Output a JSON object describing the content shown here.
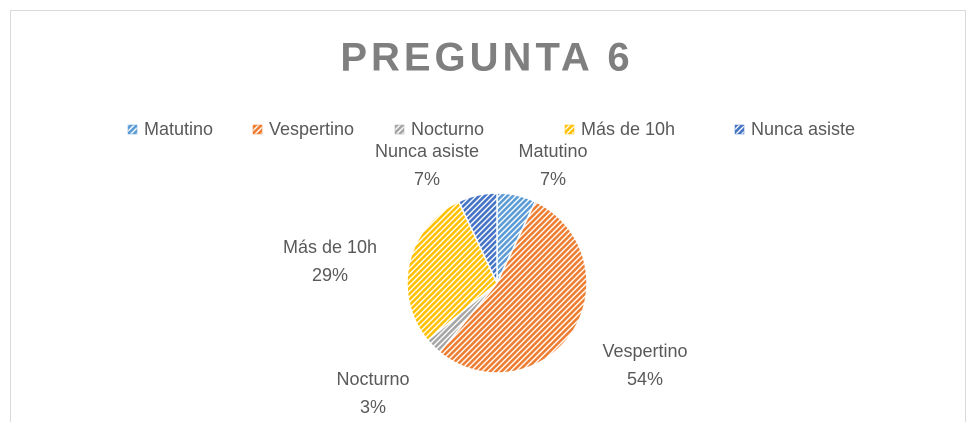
{
  "chart_data": {
    "type": "pie",
    "title": "PREGUNTA 6",
    "categories": [
      "Matutino",
      "Vespertino",
      "Nocturno",
      "Más de 10h",
      "Nunca asiste"
    ],
    "values": [
      7,
      54,
      3,
      29,
      7
    ],
    "value_labels": [
      "7%",
      "54%",
      "3%",
      "29%",
      "7%"
    ],
    "colors": [
      "#5b9bd5",
      "#ed7d31",
      "#a5a5a5",
      "#ffc000",
      "#4472c4"
    ],
    "legend": "top"
  }
}
